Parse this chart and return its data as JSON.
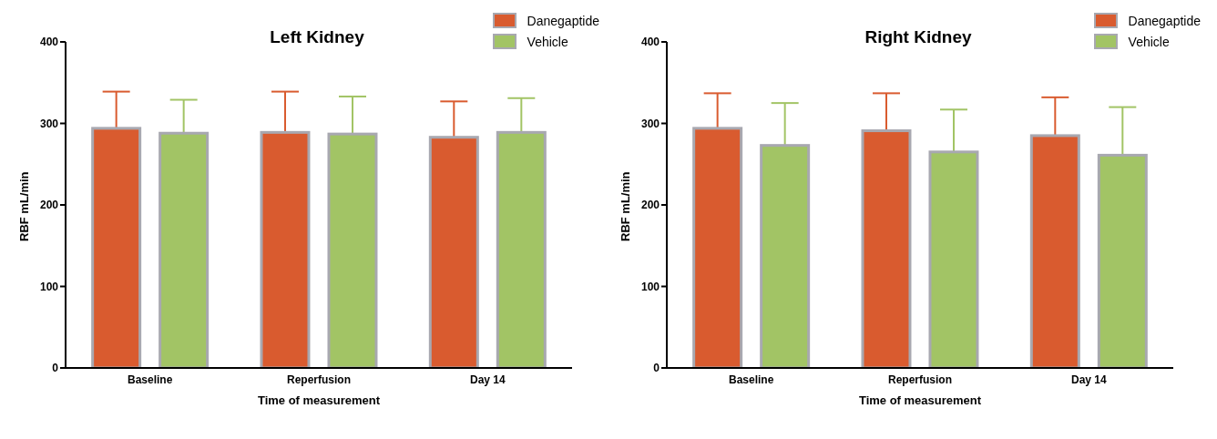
{
  "chart_data": [
    {
      "type": "bar",
      "title": "Left Kidney",
      "xlabel": "Time of measurement",
      "ylabel": "RBF mL/min",
      "categories": [
        "Baseline",
        "Reperfusion",
        "Day 14"
      ],
      "ylim": [
        0,
        400
      ],
      "yticks": [
        0,
        100,
        200,
        300,
        400
      ],
      "grid": false,
      "legend": "top right",
      "series": [
        {
          "name": "Danegaptide",
          "color": "#d95b2f",
          "values": [
            294,
            289,
            283
          ],
          "errors": [
            [
              294,
              339
            ],
            [
              289,
              339
            ],
            [
              283,
              327
            ]
          ]
        },
        {
          "name": "Vehicle",
          "color": "#a2c465",
          "values": [
            288,
            287,
            289
          ],
          "errors": [
            [
              288,
              329
            ],
            [
              287,
              333
            ],
            [
              289,
              331
            ]
          ]
        }
      ]
    },
    {
      "type": "bar",
      "title": "Right Kidney",
      "xlabel": "Time of measurement",
      "ylabel": "RBF mL/min",
      "categories": [
        "Baseline",
        "Reperfusion",
        "Day 14"
      ],
      "ylim": [
        0,
        400
      ],
      "yticks": [
        0,
        100,
        200,
        300,
        400
      ],
      "grid": false,
      "legend": "top right",
      "series": [
        {
          "name": "Danegaptide",
          "color": "#d95b2f",
          "values": [
            294,
            291,
            285
          ],
          "errors": [
            [
              294,
              337
            ],
            [
              291,
              337
            ],
            [
              285,
              332
            ]
          ]
        },
        {
          "name": "Vehicle",
          "color": "#a2c465",
          "values": [
            273,
            265,
            261
          ],
          "errors": [
            [
              273,
              325
            ],
            [
              265,
              317
            ],
            [
              261,
              320
            ]
          ]
        }
      ]
    }
  ]
}
